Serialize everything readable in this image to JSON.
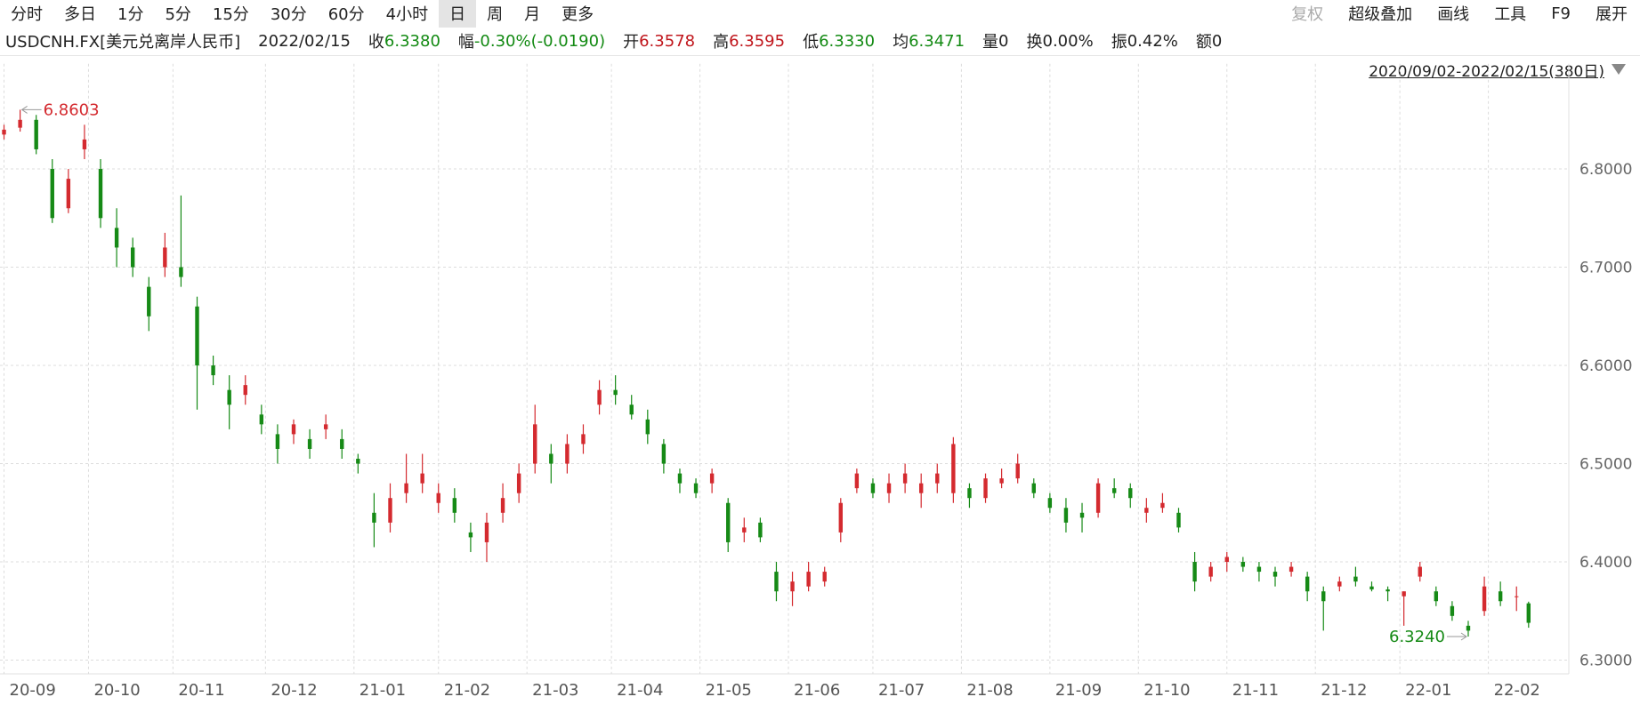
{
  "toolbar": {
    "tabs": [
      "分时",
      "多日",
      "1分",
      "5分",
      "15分",
      "30分",
      "60分",
      "4小时",
      "日",
      "周",
      "月",
      "更多"
    ],
    "selected": 8,
    "tools": [
      "复权",
      "超级叠加",
      "画线",
      "工具",
      "F9",
      "展开"
    ]
  },
  "quote": {
    "symbol": "USDCNH.FX[美元兑离岸人民币]",
    "date": "2022/02/15",
    "fields": [
      {
        "label": "收",
        "value": "6.3380",
        "color": "#138a13"
      },
      {
        "label": "幅",
        "value": "-0.30%(-0.0190)",
        "color": "#138a13"
      },
      {
        "label": "开",
        "value": "6.3578",
        "color": "#c0161c"
      },
      {
        "label": "高",
        "value": "6.3595",
        "color": "#c0161c"
      },
      {
        "label": "低",
        "value": "6.3330",
        "color": "#138a13"
      },
      {
        "label": "均",
        "value": "6.3471",
        "color": "#138a13"
      },
      {
        "label": "量",
        "value": "0",
        "color": "#222222"
      },
      {
        "label": "换",
        "value": "0.00%",
        "color": "#222222"
      },
      {
        "label": "振",
        "value": "0.42%",
        "color": "#222222"
      },
      {
        "label": "额",
        "value": "0",
        "color": "#222222"
      }
    ]
  },
  "range": "2020/09/02-2022/02/15(380日)",
  "chart_data": {
    "type": "candlestick",
    "up_color": "#d42a2f",
    "down_color": "#168a16",
    "grid": true,
    "max_label": "6.8603",
    "min_label": "6.3240",
    "xlim": [
      -1,
      389
    ],
    "ylim": [
      6.286,
      6.889
    ],
    "xticks": [
      {
        "value": 0,
        "label": "20-09"
      },
      {
        "value": 21,
        "label": "20-10"
      },
      {
        "value": 42,
        "label": "20-11"
      },
      {
        "value": 65,
        "label": "20-12"
      },
      {
        "value": 87,
        "label": "21-01"
      },
      {
        "value": 108,
        "label": "21-02"
      },
      {
        "value": 130,
        "label": "21-03"
      },
      {
        "value": 151,
        "label": "21-04"
      },
      {
        "value": 173,
        "label": "21-05"
      },
      {
        "value": 195,
        "label": "21-06"
      },
      {
        "value": 216,
        "label": "21-07"
      },
      {
        "value": 238,
        "label": "21-08"
      },
      {
        "value": 260,
        "label": "21-09"
      },
      {
        "value": 282,
        "label": "21-10"
      },
      {
        "value": 304,
        "label": "21-11"
      },
      {
        "value": 326,
        "label": "21-12"
      },
      {
        "value": 347,
        "label": "22-01"
      },
      {
        "value": 369,
        "label": "22-02"
      }
    ],
    "yticks": [
      {
        "value": 6.3,
        "label": "6.3000"
      },
      {
        "value": 6.4,
        "label": "6.4000"
      },
      {
        "value": 6.5,
        "label": "6.5000"
      },
      {
        "value": 6.6,
        "label": "6.6000"
      },
      {
        "value": 6.7,
        "label": "6.7000"
      },
      {
        "value": 6.8,
        "label": "6.8000"
      }
    ],
    "x": [
      0,
      4,
      8,
      12,
      16,
      20,
      24,
      28,
      32,
      36,
      40,
      44,
      48,
      52,
      56,
      60,
      64,
      68,
      72,
      76,
      80,
      84,
      88,
      92,
      96,
      100,
      104,
      108,
      112,
      116,
      120,
      124,
      128,
      132,
      136,
      140,
      144,
      148,
      152,
      156,
      160,
      164,
      168,
      172,
      176,
      180,
      184,
      188,
      192,
      196,
      200,
      204,
      208,
      212,
      216,
      220,
      224,
      228,
      232,
      236,
      240,
      244,
      248,
      252,
      256,
      260,
      264,
      268,
      272,
      276,
      280,
      284,
      288,
      292,
      296,
      300,
      304,
      308,
      312,
      316,
      320,
      324,
      328,
      332,
      336,
      340,
      344,
      348,
      352,
      356,
      360,
      364,
      368,
      372,
      376,
      379
    ],
    "open": [
      6.835,
      6.842,
      6.85,
      6.8,
      6.76,
      6.82,
      6.8,
      6.74,
      6.72,
      6.68,
      6.7,
      6.7,
      6.66,
      6.6,
      6.575,
      6.57,
      6.55,
      6.53,
      6.53,
      6.525,
      6.535,
      6.525,
      6.505,
      6.45,
      6.44,
      6.47,
      6.48,
      6.46,
      6.465,
      6.43,
      6.42,
      6.45,
      6.47,
      6.5,
      6.51,
      6.5,
      6.52,
      6.56,
      6.575,
      6.56,
      6.545,
      6.52,
      6.49,
      6.48,
      6.48,
      6.46,
      6.43,
      6.44,
      6.39,
      6.37,
      6.375,
      6.38,
      6.43,
      6.475,
      6.48,
      6.47,
      6.48,
      6.47,
      6.48,
      6.47,
      6.475,
      6.465,
      6.48,
      6.485,
      6.48,
      6.465,
      6.455,
      6.45,
      6.45,
      6.475,
      6.475,
      6.45,
      6.455,
      6.45,
      6.4,
      6.385,
      6.4,
      6.4,
      6.395,
      6.39,
      6.39,
      6.385,
      6.37,
      6.375,
      6.385,
      6.375,
      6.372,
      6.365,
      6.385,
      6.37,
      6.355,
      6.335,
      6.35,
      6.37,
      6.365,
      6.3578
    ],
    "high": [
      6.845,
      6.8603,
      6.855,
      6.81,
      6.8,
      6.845,
      6.81,
      6.76,
      6.73,
      6.69,
      6.735,
      6.773,
      6.67,
      6.61,
      6.59,
      6.59,
      6.56,
      6.54,
      6.545,
      6.535,
      6.55,
      6.535,
      6.51,
      6.47,
      6.48,
      6.51,
      6.51,
      6.48,
      6.475,
      6.44,
      6.45,
      6.48,
      6.5,
      6.56,
      6.52,
      6.53,
      6.54,
      6.585,
      6.59,
      6.57,
      6.555,
      6.525,
      6.495,
      6.485,
      6.495,
      6.465,
      6.445,
      6.445,
      6.4,
      6.39,
      6.4,
      6.395,
      6.465,
      6.495,
      6.485,
      6.49,
      6.5,
      6.49,
      6.5,
      6.527,
      6.48,
      6.49,
      6.495,
      6.51,
      6.485,
      6.47,
      6.465,
      6.46,
      6.485,
      6.485,
      6.48,
      6.465,
      6.47,
      6.455,
      6.41,
      6.4,
      6.41,
      6.405,
      6.4,
      6.395,
      6.4,
      6.39,
      6.375,
      6.385,
      6.395,
      6.38,
      6.375,
      6.37,
      6.4,
      6.375,
      6.36,
      6.34,
      6.385,
      6.38,
      6.375,
      6.3595
    ],
    "low": [
      6.83,
      6.838,
      6.815,
      6.745,
      6.755,
      6.81,
      6.74,
      6.7,
      6.69,
      6.635,
      6.69,
      6.68,
      6.555,
      6.58,
      6.535,
      6.56,
      6.53,
      6.5,
      6.52,
      6.505,
      6.525,
      6.505,
      6.49,
      6.415,
      6.43,
      6.46,
      6.47,
      6.45,
      6.44,
      6.41,
      6.4,
      6.44,
      6.46,
      6.49,
      6.48,
      6.49,
      6.51,
      6.55,
      6.56,
      6.545,
      6.52,
      6.49,
      6.47,
      6.465,
      6.47,
      6.41,
      6.42,
      6.42,
      6.36,
      6.355,
      6.37,
      6.375,
      6.42,
      6.47,
      6.465,
      6.46,
      6.47,
      6.455,
      6.47,
      6.46,
      6.455,
      6.46,
      6.475,
      6.48,
      6.465,
      6.45,
      6.43,
      6.43,
      6.445,
      6.465,
      6.455,
      6.44,
      6.45,
      6.43,
      6.37,
      6.38,
      6.39,
      6.39,
      6.38,
      6.375,
      6.385,
      6.36,
      6.33,
      6.37,
      6.375,
      6.37,
      6.36,
      6.335,
      6.38,
      6.355,
      6.34,
      6.324,
      6.345,
      6.355,
      6.35,
      6.333
    ],
    "close": [
      6.84,
      6.85,
      6.82,
      6.75,
      6.79,
      6.83,
      6.75,
      6.72,
      6.7,
      6.65,
      6.72,
      6.69,
      6.6,
      6.59,
      6.56,
      6.58,
      6.54,
      6.515,
      6.54,
      6.515,
      6.54,
      6.515,
      6.5,
      6.44,
      6.465,
      6.48,
      6.49,
      6.47,
      6.45,
      6.425,
      6.44,
      6.465,
      6.49,
      6.54,
      6.5,
      6.52,
      6.53,
      6.575,
      6.57,
      6.55,
      6.53,
      6.5,
      6.48,
      6.47,
      6.49,
      6.42,
      6.435,
      6.425,
      6.37,
      6.38,
      6.39,
      6.39,
      6.46,
      6.49,
      6.47,
      6.48,
      6.49,
      6.48,
      6.49,
      6.52,
      6.465,
      6.485,
      6.485,
      6.5,
      6.47,
      6.455,
      6.44,
      6.445,
      6.48,
      6.47,
      6.465,
      6.455,
      6.46,
      6.435,
      6.38,
      6.395,
      6.405,
      6.395,
      6.39,
      6.385,
      6.395,
      6.37,
      6.36,
      6.38,
      6.38,
      6.372,
      6.37,
      6.37,
      6.395,
      6.36,
      6.345,
      6.33,
      6.375,
      6.36,
      6.365,
      6.338
    ]
  }
}
